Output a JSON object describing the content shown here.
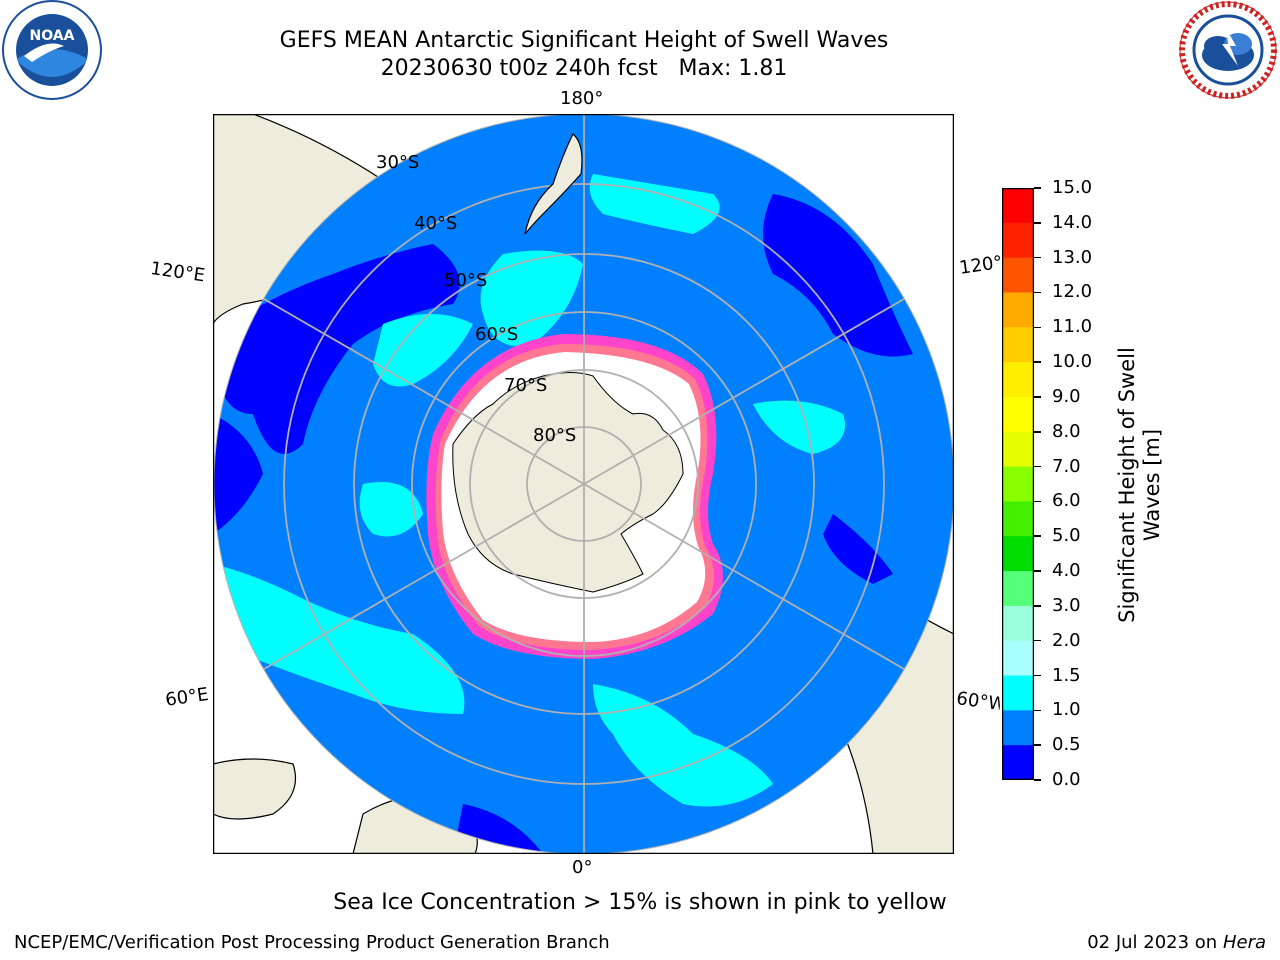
{
  "header": {
    "title_line1": "GEFS MEAN Antarctic Significant Height of Swell Waves",
    "title_line2": "20230630 t00z 240h fcst   Max: 1.81"
  },
  "logos": {
    "left": {
      "text": "NOAA",
      "ring_text": "NATIONAL OCEANIC AND ATMOSPHERIC ADMINISTRATION",
      "bottom_text": "U.S. DEPARTMENT OF COMMERCE"
    },
    "right": {
      "ring_text": "NATIONAL WEATHER SERVICE"
    }
  },
  "map": {
    "longitude_labels": {
      "top": "180°",
      "bottom": "0°",
      "upper_left": "120°E",
      "upper_right": "120°W",
      "lower_left": "60°E",
      "lower_right": "60°W"
    },
    "latitude_labels": [
      "30°S",
      "40°S",
      "50°S",
      "60°S",
      "70°S",
      "80°S"
    ],
    "colors": {
      "land": "#eeecdc",
      "ice_shelf": "#ffffff",
      "ocean_low": "#0000ff",
      "ocean_mid": "#0080ff",
      "ocean_high": "#00ffff",
      "sea_ice": "#ff44cc",
      "grid": "#b0b0b0"
    }
  },
  "colorbar": {
    "label": "Significant Height of Swell\nWaves [m]",
    "ticks": [
      "15.0",
      "14.0",
      "13.0",
      "12.0",
      "11.0",
      "10.0",
      "9.0",
      "8.0",
      "7.0",
      "6.0",
      "5.0",
      "4.0",
      "3.0",
      "2.0",
      "1.5",
      "1.0",
      "0.5",
      "0.0"
    ],
    "colors": [
      "#ff0000",
      "#ff2200",
      "#ff5500",
      "#ff8800",
      "#ffaa00",
      "#ffcc00",
      "#ffee00",
      "#ffff00",
      "#e6ff00",
      "#ccff00",
      "#88ff00",
      "#44ee00",
      "#00dd00",
      "#55ff77",
      "#99ffdd",
      "#aaffff",
      "#55ffff",
      "#00ffff",
      "#0080ff",
      "#0000ff"
    ]
  },
  "notes": {
    "sea_ice": "Sea Ice Concentration > 15% is shown in pink to yellow"
  },
  "footer": {
    "left": "NCEP/EMC/Verification Post Processing Product Generation Branch",
    "date": "02 Jul 2023 on ",
    "host": "Hera"
  }
}
